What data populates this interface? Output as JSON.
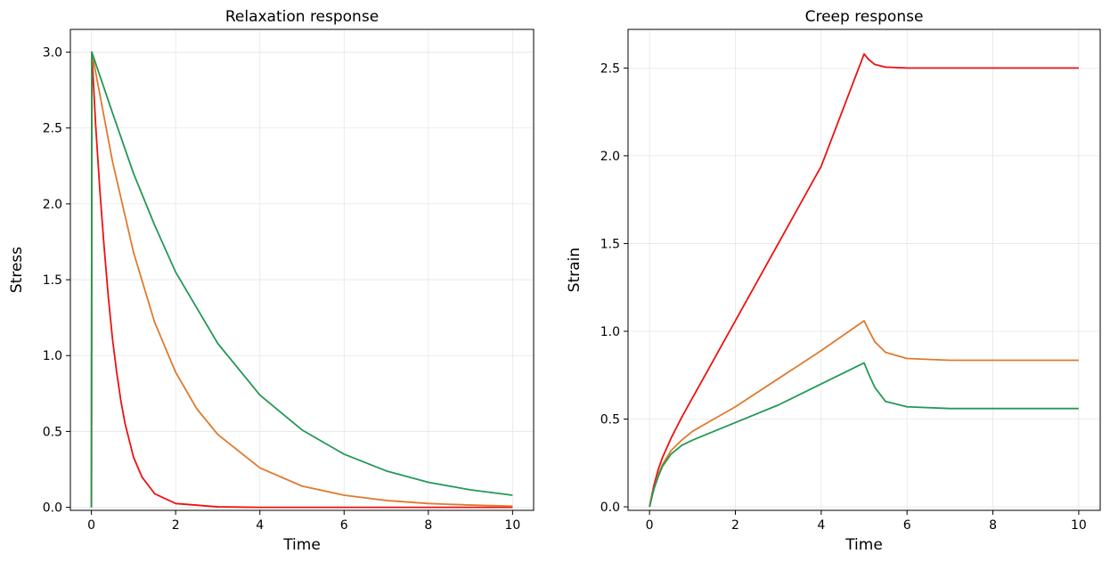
{
  "chart_data": [
    {
      "type": "line",
      "title": "Relaxation response",
      "xlabel": "Time",
      "ylabel": "Stress",
      "xlim": [
        -0.5,
        10.5
      ],
      "ylim": [
        -0.02,
        3.15
      ],
      "xticks": [
        0,
        2,
        4,
        6,
        8,
        10
      ],
      "yticks": [
        0.0,
        0.5,
        1.0,
        1.5,
        2.0,
        2.5,
        3.0
      ],
      "grid": true,
      "series": [
        {
          "color": "#ee1111",
          "values": [
            [
              0,
              0
            ],
            [
              0.01,
              3.0
            ],
            [
              0.1,
              2.52
            ],
            [
              0.2,
              2.09
            ],
            [
              0.3,
              1.72
            ],
            [
              0.4,
              1.39
            ],
            [
              0.5,
              1.11
            ],
            [
              0.6,
              0.89
            ],
            [
              0.7,
              0.7
            ],
            [
              0.8,
              0.55
            ],
            [
              1.0,
              0.33
            ],
            [
              1.2,
              0.2
            ],
            [
              1.5,
              0.09
            ],
            [
              2.0,
              0.025
            ],
            [
              3.0,
              0.003
            ],
            [
              4.0,
              0.0
            ],
            [
              10.0,
              0.0
            ]
          ]
        },
        {
          "color": "#e07a2e",
          "values": [
            [
              0,
              0
            ],
            [
              0.01,
              3.0
            ],
            [
              0.5,
              2.28
            ],
            [
              1.0,
              1.68
            ],
            [
              1.5,
              1.22
            ],
            [
              2.0,
              0.89
            ],
            [
              2.5,
              0.65
            ],
            [
              3.0,
              0.48
            ],
            [
              4.0,
              0.26
            ],
            [
              5.0,
              0.14
            ],
            [
              6.0,
              0.08
            ],
            [
              7.0,
              0.045
            ],
            [
              8.0,
              0.025
            ],
            [
              9.0,
              0.015
            ],
            [
              10.0,
              0.008
            ]
          ]
        },
        {
          "color": "#229955",
          "values": [
            [
              0,
              0
            ],
            [
              0.01,
              3.0
            ],
            [
              0.5,
              2.6
            ],
            [
              1.0,
              2.2
            ],
            [
              1.5,
              1.86
            ],
            [
              2.0,
              1.55
            ],
            [
              3.0,
              1.08
            ],
            [
              4.0,
              0.74
            ],
            [
              5.0,
              0.51
            ],
            [
              6.0,
              0.35
            ],
            [
              7.0,
              0.24
            ],
            [
              8.0,
              0.165
            ],
            [
              9.0,
              0.115
            ],
            [
              10.0,
              0.08
            ]
          ]
        }
      ]
    },
    {
      "type": "line",
      "title": "Creep response",
      "xlabel": "Time",
      "ylabel": "Strain",
      "xlim": [
        -0.5,
        10.5
      ],
      "ylim": [
        -0.02,
        2.72
      ],
      "xticks": [
        0,
        2,
        4,
        6,
        8,
        10
      ],
      "yticks": [
        0.0,
        0.5,
        1.0,
        1.5,
        2.0,
        2.5
      ],
      "grid": true,
      "series": [
        {
          "color": "#ee1111",
          "values": [
            [
              0,
              0
            ],
            [
              0.05,
              0.06
            ],
            [
              0.1,
              0.12
            ],
            [
              0.2,
              0.21
            ],
            [
              0.3,
              0.28
            ],
            [
              0.5,
              0.39
            ],
            [
              0.75,
              0.51
            ],
            [
              1.0,
              0.62
            ],
            [
              1.5,
              0.84
            ],
            [
              2.0,
              1.06
            ],
            [
              3.0,
              1.5
            ],
            [
              4.0,
              1.94
            ],
            [
              5.0,
              2.58
            ],
            [
              5.1,
              2.55
            ],
            [
              5.25,
              2.52
            ],
            [
              5.5,
              2.505
            ],
            [
              6.0,
              2.5
            ],
            [
              10.0,
              2.5
            ]
          ]
        },
        {
          "color": "#e07a2e",
          "values": [
            [
              0,
              0
            ],
            [
              0.05,
              0.05
            ],
            [
              0.1,
              0.1
            ],
            [
              0.2,
              0.18
            ],
            [
              0.3,
              0.24
            ],
            [
              0.5,
              0.32
            ],
            [
              0.75,
              0.38
            ],
            [
              1.0,
              0.43
            ],
            [
              1.5,
              0.5
            ],
            [
              2.0,
              0.57
            ],
            [
              3.0,
              0.73
            ],
            [
              4.0,
              0.89
            ],
            [
              5.0,
              1.06
            ],
            [
              5.1,
              1.01
            ],
            [
              5.25,
              0.94
            ],
            [
              5.5,
              0.88
            ],
            [
              6.0,
              0.845
            ],
            [
              7.0,
              0.835
            ],
            [
              10.0,
              0.835
            ]
          ]
        },
        {
          "color": "#229955",
          "values": [
            [
              0,
              0
            ],
            [
              0.05,
              0.05
            ],
            [
              0.1,
              0.1
            ],
            [
              0.2,
              0.17
            ],
            [
              0.3,
              0.23
            ],
            [
              0.5,
              0.3
            ],
            [
              0.75,
              0.35
            ],
            [
              1.0,
              0.38
            ],
            [
              1.5,
              0.43
            ],
            [
              2.0,
              0.48
            ],
            [
              3.0,
              0.58
            ],
            [
              4.0,
              0.7
            ],
            [
              5.0,
              0.82
            ],
            [
              5.1,
              0.76
            ],
            [
              5.25,
              0.68
            ],
            [
              5.5,
              0.6
            ],
            [
              6.0,
              0.57
            ],
            [
              7.0,
              0.56
            ],
            [
              10.0,
              0.56
            ]
          ]
        }
      ]
    }
  ]
}
